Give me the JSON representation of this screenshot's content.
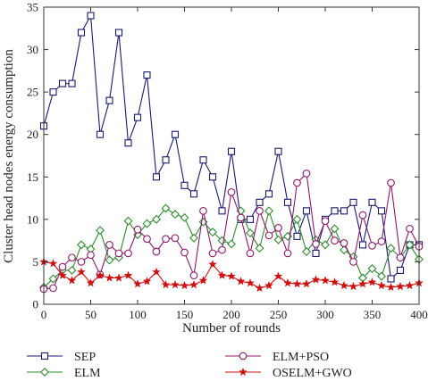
{
  "chart_data": {
    "type": "line",
    "title": "",
    "xlabel": "Number of rounds",
    "ylabel": "Cluster head nodes energy consumption",
    "xlim": [
      0,
      400
    ],
    "ylim": [
      0,
      35
    ],
    "xticks": [
      0,
      50,
      100,
      150,
      200,
      250,
      300,
      350,
      400
    ],
    "yticks": [
      0,
      5,
      10,
      15,
      20,
      25,
      30,
      35
    ],
    "grid": false,
    "legend_position": "bottom",
    "x": [
      0,
      10,
      20,
      30,
      40,
      50,
      60,
      70,
      80,
      90,
      100,
      110,
      120,
      130,
      140,
      150,
      160,
      170,
      180,
      190,
      200,
      210,
      220,
      230,
      240,
      250,
      260,
      270,
      280,
      290,
      300,
      310,
      320,
      330,
      340,
      350,
      360,
      370,
      380,
      390,
      400
    ],
    "series": [
      {
        "name": "SEP",
        "color": "#1a1a6e",
        "marker": "square",
        "values": [
          21,
          25,
          26,
          26,
          32,
          34,
          20,
          24,
          32,
          19,
          22,
          27,
          15,
          17,
          20,
          14,
          13,
          17,
          15,
          11,
          18,
          10,
          10,
          12,
          13,
          18,
          12,
          8,
          11,
          6,
          10,
          11,
          11,
          12,
          7,
          12,
          11,
          3,
          4,
          7,
          7
        ]
      },
      {
        "name": "ELM",
        "color": "#2e8b2e",
        "marker": "diamond",
        "values": [
          2,
          3,
          4,
          4,
          7,
          6.5,
          8.7,
          5.2,
          5.5,
          9.8,
          8.2,
          9.5,
          10,
          11.3,
          10.6,
          10.2,
          7.8,
          9.7,
          8.5,
          7.5,
          7.1,
          11,
          8.4,
          6.6,
          11,
          7.6,
          8,
          10,
          6.2,
          7.6,
          7,
          8.9,
          6.4,
          5.6,
          3.1,
          4.2,
          3.3,
          6.6,
          5.5,
          7,
          5.3
        ]
      },
      {
        "name": "ELM+PSO",
        "color": "#8b1a6b",
        "marker": "circle",
        "values": [
          1.8,
          1.9,
          4.4,
          5.5,
          5,
          5.8,
          3.5,
          7,
          6,
          6,
          8.8,
          7.7,
          6.2,
          7.7,
          7.8,
          6.1,
          3.4,
          11,
          6,
          6.4,
          13.2,
          10.2,
          6,
          11,
          8.1,
          9,
          6,
          14.3,
          15.4,
          7.1,
          9.8,
          7.5,
          7.2,
          5,
          10.5,
          6.9,
          7.4,
          14.3,
          5.5,
          8.9,
          6.8
        ]
      },
      {
        "name": "OSELM+GWO",
        "color": "#cc1111",
        "marker": "star",
        "values": [
          5,
          4.8,
          3.4,
          2.8,
          3.8,
          2.5,
          3.4,
          3.1,
          3.1,
          3.4,
          2.4,
          2.7,
          3.8,
          2.3,
          2.3,
          2.2,
          2.3,
          2.8,
          4.7,
          3.4,
          3.3,
          2.7,
          2.5,
          1.9,
          2.2,
          3.3,
          2.5,
          2.4,
          2.4,
          2.9,
          2.8,
          2.6,
          2.2,
          2.1,
          2.4,
          2.6,
          2.2,
          2.0,
          2.1,
          2.2,
          2.5
        ]
      }
    ]
  }
}
